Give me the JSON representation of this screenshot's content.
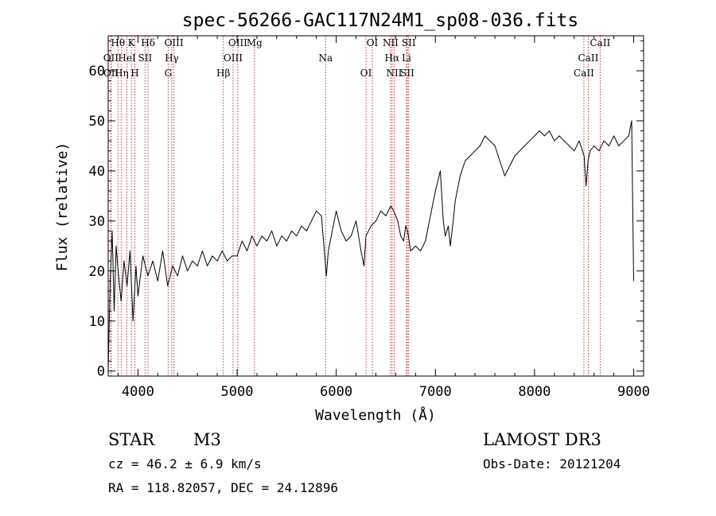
{
  "chart_data": {
    "type": "line",
    "title": "spec-56266-GAC117N24M1_sp08-036.fits",
    "xlabel": "Wavelength (Å)",
    "ylabel": "Flux (relative)",
    "xlim": [
      3700,
      9100
    ],
    "ylim": [
      -1,
      67
    ],
    "xticks": [
      4000,
      5000,
      6000,
      7000,
      8000,
      9000
    ],
    "yticks": [
      0,
      10,
      20,
      30,
      40,
      50,
      60
    ],
    "grid": false,
    "series": [
      {
        "x": [
          3700,
          3720,
          3740,
          3760,
          3780,
          3800,
          3830,
          3860,
          3890,
          3920,
          3950,
          3980,
          4000,
          4050,
          4100,
          4150,
          4200,
          4250,
          4300,
          4350,
          4400,
          4450,
          4500,
          4550,
          4600,
          4650,
          4700,
          4750,
          4800,
          4850,
          4900,
          4950,
          5000,
          5050,
          5100,
          5150,
          5200,
          5250,
          5300,
          5350,
          5400,
          5450,
          5500,
          5550,
          5600,
          5650,
          5700,
          5750,
          5800,
          5850,
          5880,
          5900,
          5920,
          5950,
          6000,
          6050,
          6100,
          6150,
          6200,
          6250,
          6280,
          6300,
          6350,
          6400,
          6450,
          6500,
          6550,
          6580,
          6600,
          6620,
          6650,
          6680,
          6700,
          6720,
          6750,
          6800,
          6850,
          6900,
          6950,
          7000,
          7050,
          7080,
          7100,
          7130,
          7150,
          7180,
          7200,
          7250,
          7300,
          7350,
          7400,
          7450,
          7500,
          7550,
          7600,
          7650,
          7700,
          7750,
          7800,
          7850,
          7900,
          7950,
          8000,
          8050,
          8100,
          8150,
          8200,
          8250,
          8300,
          8350,
          8400,
          8450,
          8500,
          8520,
          8540,
          8560,
          8600,
          8650,
          8700,
          8750,
          8800,
          8850,
          8900,
          8950,
          8980,
          9000
        ],
        "y": [
          0,
          18,
          28,
          12,
          25,
          20,
          14,
          22,
          17,
          24,
          10,
          21,
          15,
          23,
          19,
          22,
          18,
          24,
          17,
          21,
          19,
          23,
          20,
          22,
          21,
          24,
          21,
          23,
          22,
          24,
          22,
          23,
          23,
          26,
          24,
          27,
          25,
          27,
          26,
          28,
          25,
          27,
          26,
          28,
          27,
          29,
          28,
          30,
          32,
          31,
          24,
          19,
          24,
          27,
          32,
          28,
          26,
          27,
          30,
          24,
          21,
          27,
          29,
          30,
          32,
          31,
          33,
          32,
          31,
          30,
          27,
          26,
          29,
          28,
          24,
          25,
          24,
          26,
          31,
          36,
          40,
          30,
          27,
          29,
          25,
          30,
          34,
          39,
          42,
          43,
          44,
          45,
          47,
          46,
          45,
          42,
          39,
          41,
          43,
          44,
          45,
          46,
          47,
          48,
          47,
          48,
          46,
          47,
          46,
          45,
          44,
          46,
          43,
          37,
          42,
          44,
          45,
          44,
          46,
          45,
          47,
          45,
          46,
          47,
          50,
          18
        ]
      }
    ],
    "lines": [
      {
        "label": "Hθ",
        "x": 3798
      },
      {
        "label": "OII",
        "x": 3727
      },
      {
        "label": "OII",
        "x": 3729
      },
      {
        "label": "K",
        "x": 3934
      },
      {
        "label": "HeI",
        "x": 3889
      },
      {
        "label": "Hη",
        "x": 3835
      },
      {
        "label": "Hδ",
        "x": 4102
      },
      {
        "label": "SII",
        "x": 4072
      },
      {
        "label": "H",
        "x": 3969
      },
      {
        "label": "OIII",
        "x": 4363
      },
      {
        "label": "Hγ",
        "x": 4341
      },
      {
        "label": "G",
        "x": 4305
      },
      {
        "label": "OIII",
        "x": 5007
      },
      {
        "label": "OIII",
        "x": 4959
      },
      {
        "label": "Hβ",
        "x": 4861
      },
      {
        "label": "Mg",
        "x": 5175
      },
      {
        "label": "Na",
        "x": 5893
      },
      {
        "label": "OI",
        "x": 6300
      },
      {
        "label": "OI",
        "x": 6364
      },
      {
        "label": "Hα",
        "x": 6563
      },
      {
        "label": "SII",
        "x": 6717
      },
      {
        "label": "NII",
        "x": 6548
      },
      {
        "label": "Li",
        "x": 6708
      },
      {
        "label": "NII",
        "x": 6584
      },
      {
        "label": "SII",
        "x": 6731
      },
      {
        "label": "CaII",
        "x": 8542
      },
      {
        "label": "CaII",
        "x": 8498
      },
      {
        "label": "CaII",
        "x": 8662
      }
    ]
  },
  "info": {
    "object_class": "STAR",
    "subclass": "M3",
    "survey": "LAMOST DR3",
    "cz": "cz = 46.2 ± 6.9 km/s",
    "obs_date": "Obs-Date: 20121204",
    "coords": "RA = 118.82057, DEC =  24.12896"
  },
  "colors": {
    "line_marker": "#b22222",
    "spectrum": "#000000"
  }
}
